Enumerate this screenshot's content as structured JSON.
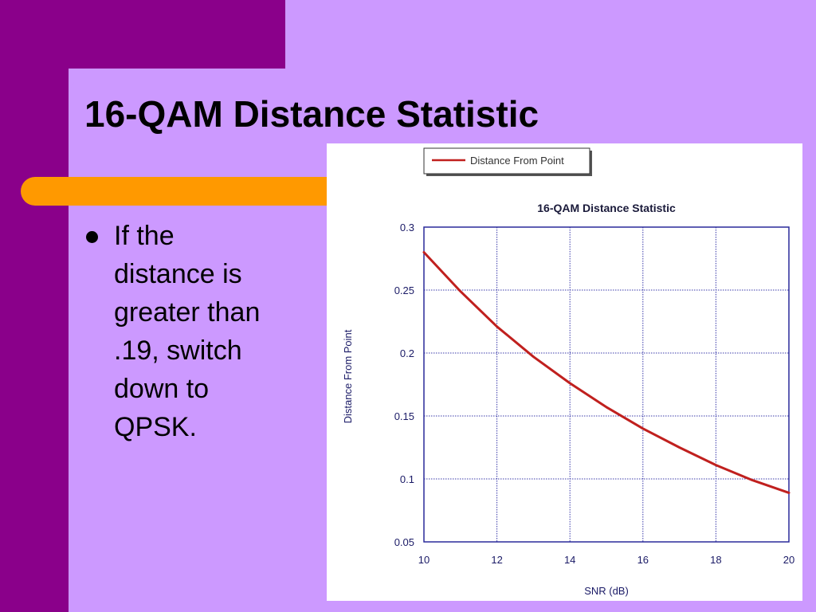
{
  "slide": {
    "title": "16-QAM Distance Statistic",
    "bullets": [
      {
        "lines": [
          "If the",
          "distance is",
          "greater than",
          ".19, switch",
          "down to",
          "QPSK."
        ]
      }
    ],
    "colors": {
      "background": "#cc99ff",
      "accent_purple": "#8a008a",
      "accent_orange": "#ff9900",
      "line": "#c0201e",
      "axis": "#2a2a9a"
    }
  },
  "chart_data": {
    "type": "line",
    "title": "16-QAM Distance Statistic",
    "xlabel": "SNR (dB)",
    "ylabel": "Distance From Point",
    "xlim": [
      10,
      20
    ],
    "ylim": [
      0.05,
      0.3
    ],
    "xticks": [
      10,
      12,
      14,
      16,
      18,
      20
    ],
    "yticks": [
      0.05,
      0.1,
      0.15,
      0.2,
      0.25,
      0.3
    ],
    "xtick_labels": [
      "10",
      "12",
      "14",
      "16",
      "18",
      "20"
    ],
    "ytick_labels": [
      "0.05",
      "0.1",
      "0.15",
      "0.2",
      "0.25",
      "0.3"
    ],
    "grid": true,
    "legend_position": "top-left",
    "series": [
      {
        "name": "Distance From Point",
        "color": "#c0201e",
        "x": [
          10,
          11,
          12,
          13,
          14,
          15,
          16,
          17,
          18,
          19,
          20
        ],
        "y": [
          0.28,
          0.249,
          0.221,
          0.197,
          0.176,
          0.157,
          0.14,
          0.125,
          0.111,
          0.099,
          0.089
        ]
      }
    ]
  }
}
